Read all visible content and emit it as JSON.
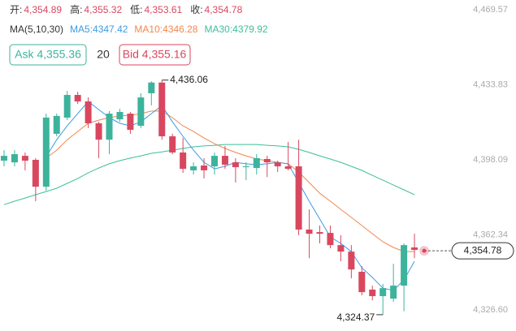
{
  "header": {
    "items": [
      {
        "label": "开:",
        "value": "4,354.89"
      },
      {
        "label": "高:",
        "value": "4,355.32"
      },
      {
        "label": "低:",
        "value": "4,353.61"
      },
      {
        "label": "收:",
        "value": "4,354.78"
      }
    ]
  },
  "ma_row": [
    {
      "text": "MA(5,10,30)",
      "color": "#333333"
    },
    {
      "text": "MA5:4347.42",
      "color": "#3d9be0"
    },
    {
      "text": "MA10:4346.28",
      "color": "#f0874f"
    },
    {
      "text": "MA30:4379.92",
      "color": "#3dbf9a"
    }
  ],
  "buttons": {
    "ask": "Ask 4,355.36",
    "depth": "20",
    "bid": "Bid 4,355.16"
  },
  "chart_data": {
    "type": "candlestick",
    "up_color": "#3db39c",
    "down_color": "#d9475f",
    "ylim": [
      4316.6,
      4474.2
    ],
    "yticks": [
      {
        "value": 4469.57,
        "label": "4,469.57"
      },
      {
        "value": 4433.83,
        "label": "4,433.83"
      },
      {
        "value": 4398.09,
        "label": "4,398.09"
      },
      {
        "value": 4362.34,
        "label": "4,362.34"
      },
      {
        "value": 4326.6,
        "label": "4,326.60"
      }
    ],
    "open": [
      4397.7,
      4396.9,
      4400.0,
      4398.1,
      4385.3,
      4410.5,
      4418.2,
      4429.0,
      4425.9,
      4415.5,
      4407.7,
      4417.4,
      4420.1,
      4414.3,
      4429.8,
      4434.9,
      4409.3,
      4401.6,
      4393.1,
      4395.4,
      4395.0,
      4400.0,
      4396.9,
      4394.6,
      4394.2,
      4398.5,
      4396.9,
      4395.0,
      4395.0,
      4364.9,
      4363.7,
      4363.3,
      4357.5,
      4354.4,
      4344.8,
      4336.3,
      4333.2,
      4332.0,
      4338.2,
      4356.4
    ],
    "high": [
      4402.7,
      4402.7,
      4401.6,
      4398.9,
      4420.1,
      4420.1,
      4430.9,
      4430.5,
      4427.8,
      4416.2,
      4421.3,
      4422.4,
      4420.9,
      4429.8,
      4435.5,
      4436.06,
      4410.5,
      4408.5,
      4396.9,
      4398.9,
      4401.6,
      4404.7,
      4398.9,
      4396.9,
      4400.8,
      4400.0,
      4397.7,
      4406.6,
      4407.7,
      4374.5,
      4366.8,
      4366.8,
      4362.2,
      4357.5,
      4347.5,
      4338.2,
      4339.0,
      4348.6,
      4358.3,
      4362.9
    ],
    "low": [
      4395.0,
      4395.0,
      4393.1,
      4378.4,
      4383.4,
      4409.3,
      4417.0,
      4424.7,
      4413.2,
      4398.9,
      4400.8,
      4416.2,
      4410.5,
      4413.2,
      4424.0,
      4407.7,
      4400.8,
      4391.9,
      4391.1,
      4389.2,
      4391.1,
      4393.8,
      4387.3,
      4388.4,
      4391.1,
      4389.9,
      4392.3,
      4393.1,
      4362.2,
      4351.3,
      4358.3,
      4356.0,
      4349.8,
      4341.7,
      4333.6,
      4331.2,
      4324.37,
      4330.5,
      4326.0,
      4351.3
    ],
    "close": [
      4400.0,
      4400.8,
      4397.7,
      4385.3,
      4418.2,
      4419.0,
      4429.0,
      4425.9,
      4415.5,
      4407.7,
      4420.1,
      4420.9,
      4412.4,
      4427.8,
      4434.9,
      4409.3,
      4401.6,
      4393.8,
      4395.0,
      4393.1,
      4400.0,
      4395.8,
      4394.6,
      4395.0,
      4398.9,
      4396.9,
      4395.0,
      4393.8,
      4364.9,
      4362.9,
      4362.9,
      4357.5,
      4354.4,
      4345.9,
      4335.1,
      4333.2,
      4337.0,
      4338.2,
      4357.5,
      4355.2
    ],
    "ma_lines": [
      {
        "color": "#3dbf9a",
        "values": [
          4376.8,
          4378.4,
          4379.9,
          4381.5,
          4383.0,
          4384.6,
          4386.9,
          4389.2,
          4391.9,
          4394.2,
          4396.2,
          4397.7,
          4398.9,
          4400.0,
          4401.2,
          4401.9,
          4402.7,
          4403.5,
          4404.3,
          4404.7,
          4405.0,
          4405.4,
          4405.4,
          4405.4,
          4405.4,
          4405.0,
          4404.7,
          4404.3,
          4403.1,
          4401.6,
          4400.0,
          4398.5,
          4396.9,
          4395.0,
          4393.1,
          4390.7,
          4388.4,
          4386.1,
          4383.8,
          4381.5
        ]
      },
      {
        "color": "#f0874f",
        "values": [
          null,
          null,
          null,
          null,
          4398.9,
          4402.7,
          4407.7,
          4411.6,
          4415.5,
          4417.0,
          4418.2,
          4419.0,
          4419.3,
          4420.1,
          4421.3,
          4421.3,
          4418.2,
          4414.3,
          4411.6,
          4408.5,
          4405.8,
          4403.5,
          4401.6,
          4400.0,
          4398.5,
          4397.7,
          4396.9,
          4396.2,
          4392.3,
          4387.3,
          4382.2,
          4378.4,
          4374.5,
          4370.7,
          4366.8,
          4362.9,
          4359.1,
          4356.4,
          4354.4,
          4354.4
        ]
      },
      {
        "color": "#3d9be0",
        "values": [
          null,
          null,
          null,
          null,
          4399.6,
          4407.7,
          4414.3,
          4420.1,
          4425.9,
          4422.0,
          4418.2,
          4415.5,
          4414.3,
          4416.2,
          4420.1,
          4424.0,
          4416.2,
          4409.3,
          4402.7,
          4396.9,
          4393.8,
          4395.0,
          4396.9,
          4396.2,
          4395.8,
          4396.2,
          4396.9,
          4396.2,
          4387.3,
          4378.4,
          4369.9,
          4361.4,
          4358.3,
          4354.4,
          4346.7,
          4342.1,
          4337.0,
          4335.9,
          4340.9,
          4349.8
        ]
      }
    ],
    "annotations": [
      {
        "label": "4,436.06",
        "value": 4436.06,
        "index": 15
      },
      {
        "label": "4,324.37",
        "value": 4324.37,
        "index": 36
      }
    ],
    "last_price": {
      "label": "4,354.78",
      "value": 4354.78
    }
  }
}
